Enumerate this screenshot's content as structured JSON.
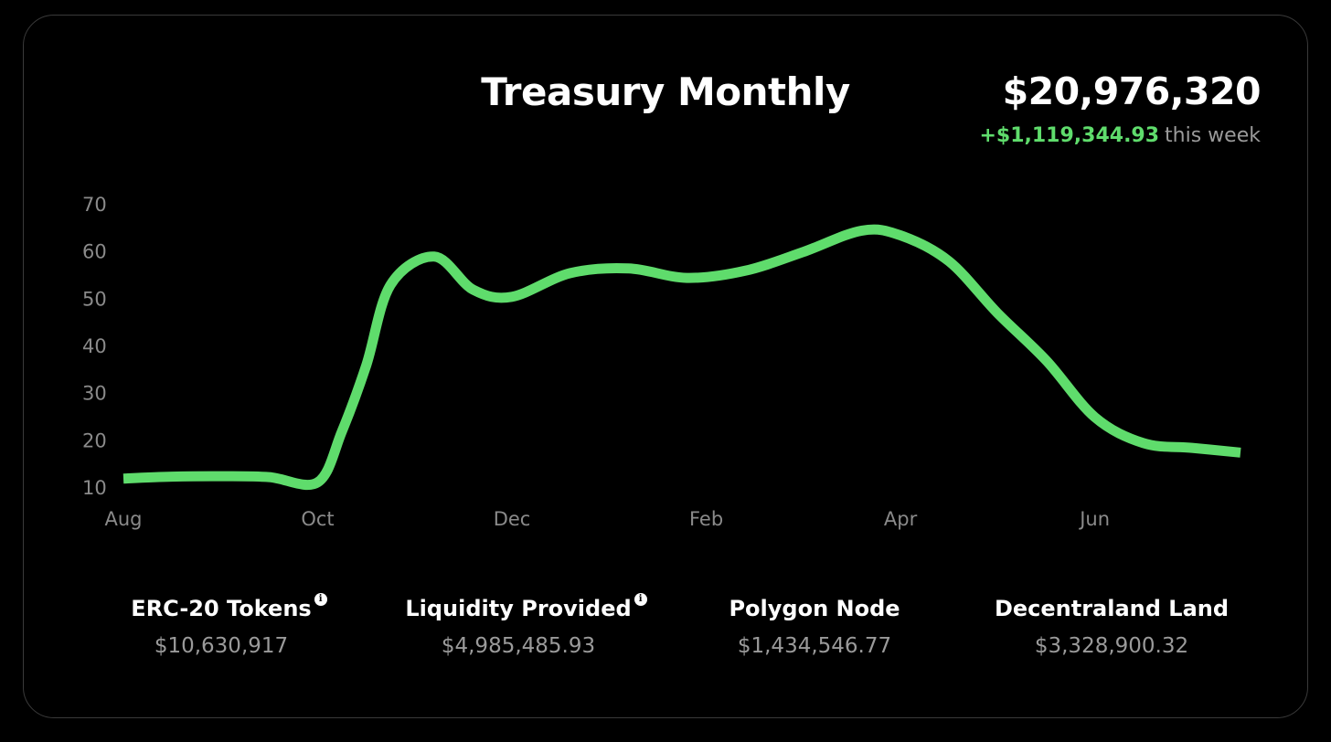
{
  "header": {
    "title": "Treasury Monthly",
    "total": "$20,976,320",
    "weekly_change": "+$1,119,344.93",
    "weekly_suffix": "this week"
  },
  "colors": {
    "background": "#000000",
    "line": "#5fdc6c",
    "muted_text": "#8a8a8a",
    "positive": "#5fdc6c"
  },
  "chart_data": {
    "type": "line",
    "title": "Treasury Monthly",
    "xlabel": "",
    "ylabel": "",
    "x_ticks": [
      "Aug",
      "Oct",
      "Dec",
      "Feb",
      "Apr",
      "Jun"
    ],
    "y_ticks": [
      10,
      20,
      30,
      40,
      50,
      60,
      70
    ],
    "xlim": [
      0,
      11.5
    ],
    "ylim": [
      10,
      70
    ],
    "grid": false,
    "legend": "none",
    "series": [
      {
        "values": [
          {
            "x": 0.0,
            "y": 12
          },
          {
            "x": 0.5,
            "y": 12.4
          },
          {
            "x": 1.0,
            "y": 12.5
          },
          {
            "x": 1.5,
            "y": 12.3
          },
          {
            "x": 2.0,
            "y": 11.2
          },
          {
            "x": 2.25,
            "y": 22
          },
          {
            "x": 2.5,
            "y": 36
          },
          {
            "x": 2.75,
            "y": 53
          },
          {
            "x": 3.2,
            "y": 59
          },
          {
            "x": 3.6,
            "y": 52
          },
          {
            "x": 4.0,
            "y": 50.5
          },
          {
            "x": 4.6,
            "y": 55.5
          },
          {
            "x": 5.2,
            "y": 56.5
          },
          {
            "x": 5.8,
            "y": 54.5
          },
          {
            "x": 6.4,
            "y": 56
          },
          {
            "x": 7.0,
            "y": 60
          },
          {
            "x": 7.6,
            "y": 64.5
          },
          {
            "x": 8.0,
            "y": 63.5
          },
          {
            "x": 8.5,
            "y": 58
          },
          {
            "x": 9.0,
            "y": 47
          },
          {
            "x": 9.5,
            "y": 37
          },
          {
            "x": 10.0,
            "y": 25
          },
          {
            "x": 10.5,
            "y": 19.5
          },
          {
            "x": 11.0,
            "y": 18.5
          },
          {
            "x": 11.5,
            "y": 17.5
          }
        ]
      }
    ]
  },
  "stats": [
    {
      "label": "ERC-20 Tokens",
      "value": "$10,630,917",
      "info": true
    },
    {
      "label": "Liquidity Provided",
      "value": "$4,985,485.93",
      "info": true
    },
    {
      "label": "Polygon Node",
      "value": "$1,434,546.77",
      "info": false
    },
    {
      "label": "Decentraland Land",
      "value": "$3,328,900.32",
      "info": false
    }
  ]
}
